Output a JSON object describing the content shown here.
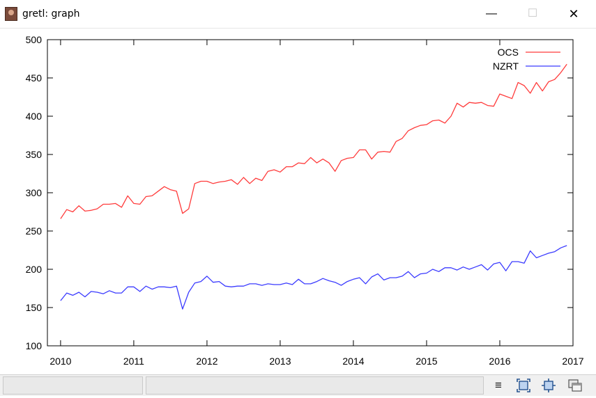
{
  "window": {
    "title": "gretl: graph",
    "minimize_glyph": "—",
    "maximize_glyph": "☐",
    "close_glyph": "✕"
  },
  "toolbar": {
    "menu_icon": "hamburger-menu-icon",
    "menu_glyph": "≡",
    "zoom_icon": "zoom-icon",
    "fit_icon": "fit-icon",
    "windows_icon": "windows-icon"
  },
  "colors": {
    "ocs": "#ff3b3b",
    "nzrt": "#3b3bff",
    "axis": "#000000"
  },
  "chart_data": {
    "type": "line",
    "title": "",
    "xlabel": "",
    "ylabel": "",
    "xlim": [
      2009.82,
      2017.0
    ],
    "ylim": [
      100,
      500
    ],
    "xticks": [
      2010,
      2011,
      2012,
      2013,
      2014,
      2015,
      2016,
      2017
    ],
    "yticks": [
      100,
      150,
      200,
      250,
      300,
      350,
      400,
      450,
      500
    ],
    "grid": false,
    "legend_position": "top-right",
    "x_start": 2010,
    "frequency": "monthly",
    "series": [
      {
        "name": "OCS",
        "color": "#ff3b3b",
        "values": [
          266,
          278,
          275,
          283,
          276,
          277,
          279,
          285,
          285,
          286,
          281,
          296,
          286,
          285,
          295,
          296,
          302,
          308,
          304,
          302,
          273,
          279,
          312,
          315,
          315,
          312,
          314,
          315,
          317,
          311,
          320,
          312,
          319,
          316,
          328,
          330,
          327,
          334,
          334,
          339,
          338,
          346,
          339,
          344,
          339,
          328,
          342,
          345,
          346,
          356,
          356,
          344,
          353,
          354,
          353,
          367,
          371,
          381,
          385,
          388,
          389,
          394,
          395,
          391,
          400,
          417,
          412,
          418,
          417,
          418,
          414,
          413,
          429,
          426,
          423,
          444,
          440,
          430,
          444,
          433,
          445,
          448,
          457,
          468
        ]
      },
      {
        "name": "NZRT",
        "color": "#3b3bff",
        "values": [
          159,
          169,
          166,
          170,
          164,
          171,
          170,
          168,
          172,
          169,
          169,
          177,
          177,
          171,
          178,
          174,
          177,
          177,
          176,
          178,
          148,
          170,
          182,
          184,
          191,
          183,
          184,
          178,
          177,
          178,
          178,
          181,
          181,
          179,
          181,
          180,
          180,
          182,
          180,
          187,
          181,
          181,
          184,
          188,
          185,
          183,
          179,
          184,
          187,
          189,
          181,
          190,
          194,
          186,
          189,
          189,
          191,
          197,
          189,
          194,
          195,
          200,
          197,
          202,
          202,
          199,
          203,
          200,
          203,
          206,
          199,
          207,
          209,
          198,
          210,
          210,
          208,
          224,
          215,
          218,
          221,
          223,
          228,
          231
        ]
      }
    ]
  }
}
